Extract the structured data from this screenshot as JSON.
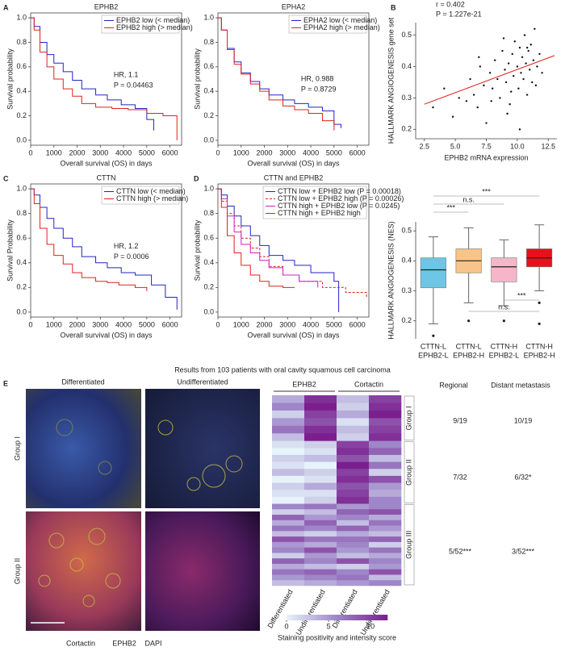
{
  "panels": [
    "A",
    "B",
    "C",
    "D",
    "E"
  ],
  "figure_title": "Results from 103 patients with oral cavity squamous cell carcinoma",
  "images": {
    "columns": [
      "Differentiated",
      "Undifferentiated"
    ],
    "rows": [
      "Group I",
      "Group II"
    ],
    "stains": [
      {
        "name": "Cortactin",
        "color": "#e0202a"
      },
      {
        "name": "EPHB2",
        "color": "#2aa02a"
      },
      {
        "name": "DAPI",
        "color": "#2030c0"
      }
    ]
  },
  "table": {
    "headers": [
      "Regional",
      "Distant metastasis"
    ],
    "rows": [
      [
        "9/19",
        "10/19"
      ],
      [
        "7/32",
        "6/32*"
      ],
      [
        "5/52***",
        "3/52***"
      ]
    ]
  },
  "chart_data": [
    {
      "type": "km",
      "title": "EPHB2",
      "xlabel": "Overall survival (OS) in days",
      "ylabel": "Survival probability",
      "xlim": [
        0,
        6500
      ],
      "xticks": [
        0,
        1000,
        2000,
        3000,
        4000,
        5000,
        6000
      ],
      "ylim": [
        -0.04,
        1.04
      ],
      "yticks": [
        {
          "value": 0,
          "label": "0.0"
        },
        0.2,
        0.4,
        0.6,
        0.8,
        {
          "value": 1,
          "label": "1.0"
        }
      ],
      "legend": "upper right",
      "annotations": [
        "HR, 1.1",
        "P = 0.04463"
      ],
      "series": [
        {
          "name": "EPHB2 low (< median)",
          "color": "#2323c8",
          "x": [
            0,
            150,
            400,
            700,
            1000,
            1400,
            1800,
            2200,
            2800,
            3300,
            3900,
            4500,
            5000,
            5300
          ],
          "values": [
            1,
            0.93,
            0.8,
            0.7,
            0.63,
            0.56,
            0.49,
            0.42,
            0.37,
            0.33,
            0.29,
            0.26,
            0.17,
            0.08
          ]
        },
        {
          "name": "EPHB2 high (> median)",
          "color": "#e02020",
          "x": [
            0,
            150,
            400,
            700,
            1000,
            1400,
            1800,
            2200,
            2800,
            3500,
            4200,
            5000,
            5700,
            6300
          ],
          "values": [
            1,
            0.9,
            0.72,
            0.6,
            0.5,
            0.42,
            0.36,
            0.3,
            0.27,
            0.26,
            0.25,
            0.22,
            0.2,
            0.0
          ]
        }
      ]
    },
    {
      "type": "km",
      "title": "EPHA2",
      "xlabel": "Overall survival (OS) in days",
      "ylabel": "Survival probability",
      "xlim": [
        0,
        6500
      ],
      "xticks": [
        0,
        1000,
        2000,
        3000,
        4000,
        5000,
        6000
      ],
      "ylim": [
        -0.04,
        1.04
      ],
      "yticks": [
        {
          "value": 0,
          "label": "0.0"
        },
        0.2,
        0.4,
        0.6,
        0.8,
        {
          "value": 1,
          "label": "1.0"
        }
      ],
      "legend": "upper right",
      "annotations": [
        "HR, 0.988",
        "P = 0.8729"
      ],
      "series": [
        {
          "name": "EPHA2 low (< median)",
          "color": "#2323c8",
          "x": [
            0,
            150,
            400,
            700,
            1000,
            1400,
            1800,
            2200,
            2800,
            3300,
            3900,
            4500,
            5000,
            5300
          ],
          "values": [
            1,
            0.9,
            0.75,
            0.64,
            0.55,
            0.48,
            0.42,
            0.37,
            0.33,
            0.3,
            0.27,
            0.24,
            0.13,
            0.1
          ]
        },
        {
          "name": "EPHA2 high (> median)",
          "color": "#e02020",
          "x": [
            0,
            150,
            400,
            700,
            1000,
            1400,
            1800,
            2200,
            2800,
            3300,
            3900,
            4500,
            5000
          ],
          "values": [
            1,
            0.9,
            0.74,
            0.62,
            0.54,
            0.46,
            0.4,
            0.33,
            0.28,
            0.25,
            0.22,
            0.16,
            0.08
          ]
        }
      ]
    },
    {
      "type": "scatter",
      "xlabel": "EPHB2 mRNA expression",
      "ylabel": "HALLMARK ANGIOGENESIS gene set",
      "annotations": [
        "r = 0.402",
        "P = 1.227e-21"
      ],
      "xlim": [
        1.8,
        13.2
      ],
      "xticks": [
        2.5,
        {
          "value": 5,
          "label": "5.0"
        },
        7.5,
        {
          "value": 10,
          "label": "10.0"
        },
        12.5
      ],
      "ylim": [
        0.17,
        0.54
      ],
      "yticks": [
        0.2,
        0.3,
        0.4,
        0.5
      ],
      "color": "#111111",
      "x": [
        3.2,
        4.1,
        4.8,
        5.3,
        5.9,
        6.2,
        6.5,
        6.8,
        7.0,
        7.3,
        7.5,
        7.8,
        8.0,
        8.2,
        8.4,
        8.6,
        8.8,
        9.0,
        9.1,
        9.3,
        9.4,
        9.6,
        9.7,
        9.8,
        10.0,
        10.1,
        10.2,
        10.3,
        10.4,
        10.5,
        10.6,
        10.7,
        10.8,
        10.9,
        11.0,
        11.1,
        11.2,
        11.3,
        11.4,
        11.6,
        11.8,
        12.0,
        9.2,
        8.9,
        10.2,
        9.5,
        7.9,
        6.9,
        11.5,
        10.8
      ],
      "values": [
        0.27,
        0.33,
        0.24,
        0.3,
        0.29,
        0.36,
        0.31,
        0.27,
        0.4,
        0.34,
        0.22,
        0.38,
        0.33,
        0.42,
        0.36,
        0.3,
        0.45,
        0.39,
        0.35,
        0.41,
        0.28,
        0.44,
        0.37,
        0.48,
        0.4,
        0.33,
        0.46,
        0.38,
        0.43,
        0.36,
        0.5,
        0.41,
        0.31,
        0.45,
        0.39,
        0.47,
        0.35,
        0.42,
        0.52,
        0.4,
        0.44,
        0.38,
        0.25,
        0.49,
        0.2,
        0.32,
        0.29,
        0.43,
        0.34,
        0.46
      ],
      "fit": {
        "color": "#e02020",
        "x": [
          2.5,
          13.0
        ],
        "values": [
          0.28,
          0.435
        ]
      }
    },
    {
      "type": "km",
      "title": "CTTN",
      "xlabel": "Overall survival (OS) in days",
      "ylabel": "Survival Probability",
      "xlim": [
        0,
        6500
      ],
      "xticks": [
        0,
        1000,
        2000,
        3000,
        4000,
        5000,
        6000
      ],
      "ylim": [
        -0.04,
        1.04
      ],
      "yticks": [
        {
          "value": 0,
          "label": "0.0"
        },
        0.2,
        0.4,
        0.6,
        0.8,
        {
          "value": 1,
          "label": "1.0"
        }
      ],
      "legend": "upper right",
      "annotations": [
        "HR, 1.2",
        "P = 0.0006"
      ],
      "series": [
        {
          "name": "CTTN low (< median)",
          "color": "#2323c8",
          "x": [
            0,
            150,
            400,
            700,
            1000,
            1400,
            1800,
            2200,
            2800,
            3300,
            3900,
            4500,
            5200,
            5800,
            6300
          ],
          "values": [
            1,
            0.95,
            0.85,
            0.76,
            0.68,
            0.6,
            0.53,
            0.45,
            0.4,
            0.36,
            0.32,
            0.3,
            0.22,
            0.12,
            0.02
          ]
        },
        {
          "name": "CTTN high (> median)",
          "color": "#e02020",
          "x": [
            0,
            150,
            400,
            700,
            1000,
            1400,
            1800,
            2200,
            2800,
            3300,
            3800,
            4500,
            5000
          ],
          "values": [
            1,
            0.88,
            0.68,
            0.55,
            0.46,
            0.39,
            0.32,
            0.28,
            0.25,
            0.24,
            0.22,
            0.2,
            0.17
          ]
        }
      ]
    },
    {
      "type": "km",
      "title": "CTTN and EPHB2",
      "xlabel": "Overall survival (OS) in days",
      "ylabel": "Survival probability",
      "xlim": [
        0,
        6500
      ],
      "xticks": [
        0,
        1000,
        2000,
        3000,
        4000,
        5000,
        6000
      ],
      "ylim": [
        -0.04,
        1.04
      ],
      "yticks": [
        {
          "value": 0,
          "label": "0.0"
        },
        0.2,
        0.4,
        0.6,
        0.8,
        {
          "value": 1,
          "label": "1.0"
        }
      ],
      "legend": "upper right",
      "annotations": [],
      "series": [
        {
          "name": "CTTN low + EPHB2 low (P = 0.00018)",
          "color": "#2323c8",
          "dash": false,
          "x": [
            0,
            150,
            400,
            700,
            1000,
            1400,
            1800,
            2200,
            2800,
            3300,
            4000,
            5000,
            5200
          ],
          "values": [
            1,
            0.95,
            0.86,
            0.78,
            0.7,
            0.62,
            0.54,
            0.46,
            0.42,
            0.38,
            0.32,
            0.25,
            0.0
          ]
        },
        {
          "name": "CTTN low + EPHB2 high (P = 0.00026)",
          "color": "#e02020",
          "dash": true,
          "x": [
            0,
            150,
            400,
            700,
            1000,
            1400,
            1800,
            2200,
            2800,
            3500,
            4500,
            5500,
            6400
          ],
          "values": [
            1,
            0.9,
            0.8,
            0.7,
            0.6,
            0.52,
            0.45,
            0.37,
            0.3,
            0.25,
            0.2,
            0.16,
            0.12
          ]
        },
        {
          "name": "CTTN high + EPHB2 low (P = 0.0245)",
          "color": "#d020c0",
          "dash": false,
          "x": [
            0,
            150,
            400,
            700,
            1000,
            1400,
            1800,
            2200,
            2800,
            3500,
            4300
          ],
          "values": [
            1,
            0.92,
            0.78,
            0.65,
            0.55,
            0.48,
            0.42,
            0.36,
            0.3,
            0.25,
            0.2
          ]
        },
        {
          "name": "CTTN high + EPHB2 high",
          "color": "#e02020",
          "dash": false,
          "x": [
            0,
            150,
            400,
            700,
            1000,
            1400,
            1800,
            2200,
            2800,
            3300
          ],
          "values": [
            1,
            0.85,
            0.62,
            0.48,
            0.38,
            0.3,
            0.25,
            0.21,
            0.2,
            0.2
          ]
        }
      ]
    },
    {
      "type": "box",
      "ylabel": "HALLMARK ANGIOGENESIS (NES)",
      "categories": [
        [
          "CTTN-L",
          "EPHB2-L"
        ],
        [
          "CTTN-L",
          "EPHB2-H"
        ],
        [
          "CTTN-H",
          "EPHB2-L"
        ],
        [
          "CTTN-H",
          "EPHB2-H"
        ]
      ],
      "colors": [
        "#6ec6e6",
        "#f7c48a",
        "#f4b6c8",
        "#e8101a"
      ],
      "ylim": [
        0.14,
        0.53
      ],
      "yticks": [
        0.2,
        0.3,
        0.4,
        0.5
      ],
      "min": [
        0.19,
        0.26,
        0.25,
        0.3
      ],
      "q1": [
        0.31,
        0.36,
        0.33,
        0.38
      ],
      "median": [
        0.37,
        0.4,
        0.38,
        0.41
      ],
      "q3": [
        0.41,
        0.44,
        0.41,
        0.44
      ],
      "max": [
        0.48,
        0.51,
        0.47,
        0.52
      ],
      "outliers": [
        [
          0.15
        ],
        [
          0.2
        ],
        [
          0.2
        ],
        [
          0.26,
          0.19
        ]
      ],
      "annotations": [
        "***",
        "n.s.",
        "***",
        "***",
        "n.s."
      ]
    },
    {
      "type": "heatmap",
      "headers": [
        "EPHB2",
        "Cortactin"
      ],
      "columns": [
        "Differentiated",
        "Undifferentiated",
        "Differentiated",
        "Undifferentiated"
      ],
      "zlim": [
        0,
        12
      ],
      "zticks": [
        0,
        5,
        10
      ],
      "colorscale": [
        "#e6f3fa",
        "#9e86c8",
        "#7b1f8e"
      ],
      "colorbar_label": "Staining positivity and intensity score",
      "groups": [
        {
          "name": "Group I",
          "values": [
            [
              4,
              11,
              3,
              10
            ],
            [
              6,
              12,
              2,
              11
            ],
            [
              2,
              10,
              4,
              12
            ],
            [
              5,
              9,
              1,
              9
            ],
            [
              7,
              11,
              3,
              10
            ],
            [
              3,
              12,
              2,
              11
            ]
          ]
        },
        {
          "name": "Group II",
          "values": [
            [
              1,
              2,
              10,
              6
            ],
            [
              0,
              1,
              11,
              8
            ],
            [
              2,
              3,
              9,
              3
            ],
            [
              1,
              0,
              12,
              7
            ],
            [
              3,
              2,
              10,
              2
            ],
            [
              0,
              1,
              11,
              9
            ],
            [
              2,
              4,
              9,
              5
            ],
            [
              1,
              1,
              10,
              4
            ],
            [
              0,
              2,
              11,
              6
            ]
          ]
        },
        {
          "name": "Group III",
          "values": [
            [
              6,
              7,
              5,
              6
            ],
            [
              2,
              3,
              8,
              9
            ],
            [
              8,
              5,
              6,
              4
            ],
            [
              4,
              8,
              3,
              7
            ],
            [
              7,
              6,
              8,
              5
            ],
            [
              3,
              2,
              4,
              3
            ],
            [
              9,
              7,
              7,
              8
            ],
            [
              5,
              4,
              6,
              2
            ],
            [
              6,
              9,
              5,
              7
            ],
            [
              2,
              5,
              3,
              4
            ],
            [
              8,
              6,
              9,
              6
            ],
            [
              4,
              3,
              2,
              5
            ],
            [
              7,
              8,
              6,
              9
            ],
            [
              5,
              6,
              7,
              3
            ],
            [
              3,
              4,
              5,
              6
            ]
          ]
        }
      ]
    }
  ]
}
